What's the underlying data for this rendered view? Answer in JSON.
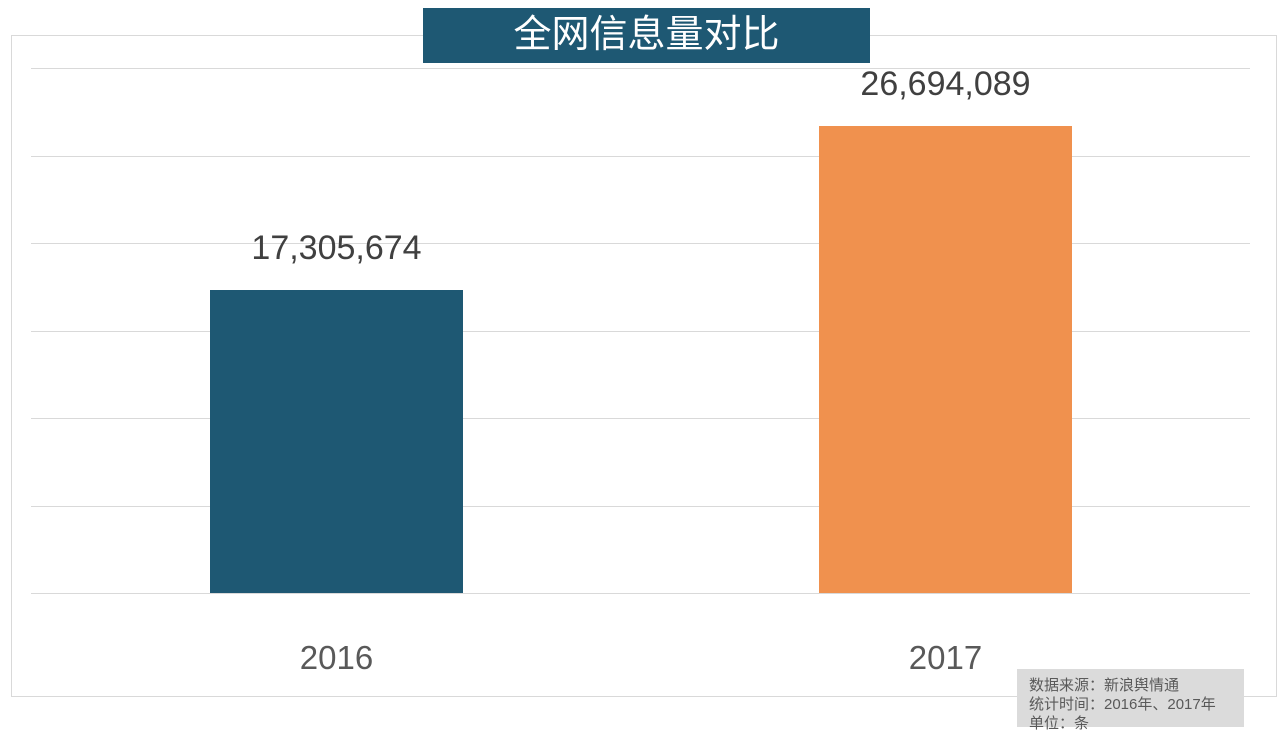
{
  "chart_data": {
    "type": "bar",
    "title": "全网信息量对比",
    "categories": [
      "2016",
      "2017"
    ],
    "values": [
      17305674,
      26694089
    ],
    "value_labels": [
      "17,305,674",
      "26,694,089"
    ],
    "series_colors": [
      "#1E5873",
      "#F0914E"
    ],
    "xlabel": "",
    "ylabel": "",
    "ylim": [
      0,
      30000000
    ],
    "gridline_step": 5000000,
    "grid": true,
    "legend_position": "none"
  },
  "source_box": {
    "lines": [
      "数据来源：新浪舆情通",
      "统计时间：2016年、2017年",
      "单位：条"
    ]
  },
  "colors": {
    "bar_2016": "#1E5873",
    "bar_2017": "#F0914E",
    "title_banner_bg": "#1E5873",
    "title_text": "#FFFFFF",
    "gridline": "#D9D9D9",
    "plot_border": "#D9D9D9",
    "value_label_text": "#404040",
    "category_label_text": "#595959",
    "source_box_bg": "#DBDBDB",
    "source_box_text": "#595959"
  }
}
